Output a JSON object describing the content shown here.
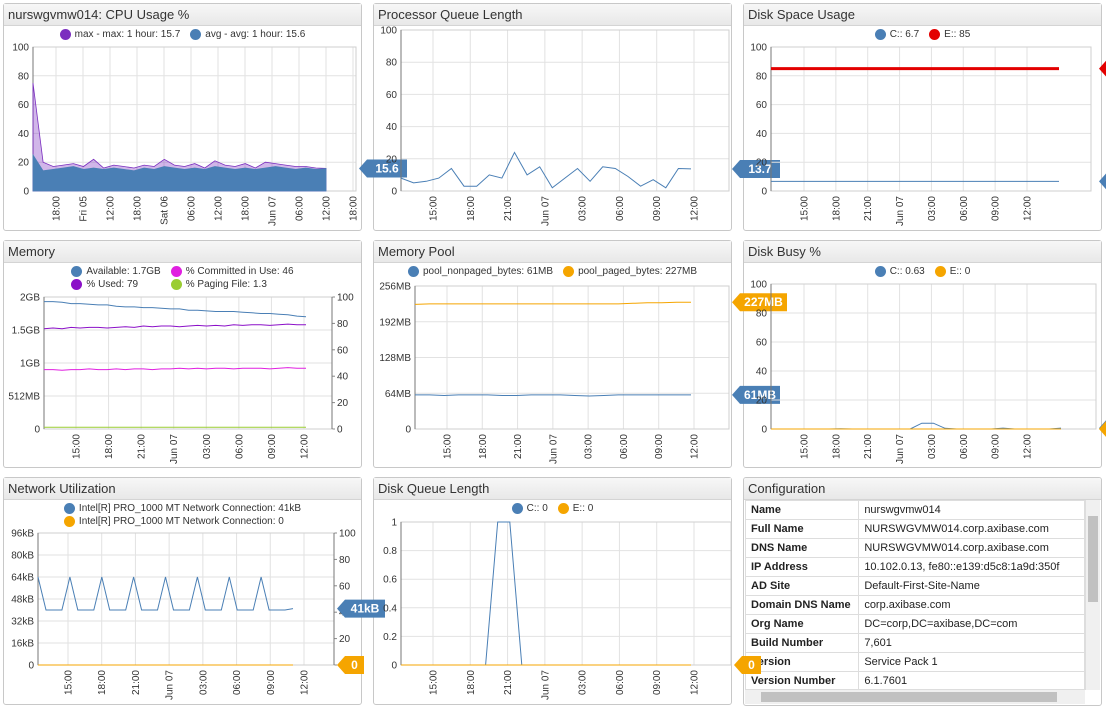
{
  "chart_data": [
    {
      "type": "area",
      "title": "nurswgvmw014: CPU Usage %",
      "ylim": [
        0,
        100
      ],
      "yticks": [
        0,
        20,
        40,
        60,
        80,
        100
      ],
      "xtick_labels": [
        "18:00",
        "Fri 05",
        "12:00",
        "18:00",
        "Sat 06",
        "06:00",
        "12:00",
        "18:00",
        "Jun 07",
        "06:00",
        "12:00",
        "18:00"
      ],
      "series": [
        {
          "name": "max - max: 1 hour: 15.7",
          "color": "#7b2fbf",
          "opacity": 0.35,
          "values": [
            75,
            20,
            17,
            18,
            19,
            17,
            22,
            16,
            18,
            17,
            16,
            18,
            17,
            22,
            18,
            17,
            19,
            16,
            21,
            18,
            17,
            19,
            16,
            20,
            19,
            18,
            17,
            17,
            16,
            15.7
          ]
        },
        {
          "name": "avg - avg: 1 hour: 15.6",
          "color": "#4a7fb5",
          "opacity": 1,
          "values": [
            25,
            14,
            15,
            16,
            17,
            15,
            16,
            15,
            16,
            15,
            14,
            16,
            15,
            17,
            16,
            15,
            16,
            15,
            17,
            16,
            15,
            16,
            15,
            16,
            17,
            16,
            15,
            16,
            15,
            15.6
          ]
        }
      ],
      "badges": [
        {
          "value": 15.6,
          "color": "#4a7fb5"
        }
      ]
    },
    {
      "type": "line",
      "title": "Processor Queue Length",
      "ylim": [
        0,
        100
      ],
      "yticks": [
        0,
        20,
        40,
        60,
        80,
        100
      ],
      "xtick_labels": [
        "15:00",
        "18:00",
        "21:00",
        "Jun 07",
        "03:00",
        "06:00",
        "09:00",
        "12:00"
      ],
      "series": [
        {
          "color": "#4a7fb5",
          "values": [
            8,
            5,
            6,
            8,
            14,
            3,
            3,
            10,
            8,
            24,
            10,
            15,
            2,
            8,
            14,
            6,
            15,
            14,
            9,
            3,
            7,
            2,
            14,
            13.7
          ]
        }
      ],
      "badges": [
        {
          "value": 13.7,
          "color": "#4a7fb5"
        }
      ]
    },
    {
      "type": "line",
      "title": "Disk Space Usage",
      "ylim": [
        0,
        100
      ],
      "yticks": [
        0,
        20,
        40,
        60,
        80,
        100
      ],
      "xtick_labels": [
        "15:00",
        "18:00",
        "21:00",
        "Jun 07",
        "03:00",
        "06:00",
        "09:00",
        "12:00"
      ],
      "series": [
        {
          "name": "C:: 6.7",
          "color": "#4a7fb5",
          "values": [
            6.7,
            6.7
          ]
        },
        {
          "name": "E:: 85",
          "color": "#e30000",
          "width": 3,
          "values": [
            85,
            85
          ]
        }
      ],
      "edge_markers": true
    },
    {
      "type": "line",
      "title": "Memory",
      "ylim": [
        0,
        2
      ],
      "yticks": [
        0,
        {
          "value": 0.5,
          "label": "512MB"
        },
        {
          "value": 1,
          "label": "1GB"
        },
        {
          "value": 1.5,
          "label": "1.5GB"
        },
        {
          "value": 2,
          "label": "2GB"
        }
      ],
      "y2lim": [
        0,
        100
      ],
      "y2ticks": [
        0,
        20,
        40,
        60,
        80,
        100
      ],
      "xtick_labels": [
        "15:00",
        "18:00",
        "21:00",
        "Jun 07",
        "03:00",
        "06:00",
        "09:00",
        "12:00"
      ],
      "series": [
        {
          "name": "Available: 1.7GB",
          "color": "#4a7fb5",
          "values": [
            1.93,
            1.93,
            1.92,
            1.9,
            1.9,
            1.89,
            1.88,
            1.88,
            1.86,
            1.85,
            1.85,
            1.84,
            1.84,
            1.83,
            1.82,
            1.82,
            1.8,
            1.8,
            1.79,
            1.78,
            1.78,
            1.78,
            1.77,
            1.76,
            1.75,
            1.75,
            1.74,
            1.73,
            1.71,
            1.7
          ]
        },
        {
          "name": "% Committed in Use: 46",
          "color": "#e020e0",
          "axis": "y2",
          "values": [
            45,
            45,
            44.5,
            45,
            45,
            45.5,
            45,
            45,
            45.5,
            45,
            45.5,
            45.5,
            45,
            45.5,
            45.5,
            46,
            45.5,
            46,
            45.5,
            46,
            46,
            45.5,
            46,
            46,
            46,
            45.5,
            46,
            46.5,
            46,
            46
          ]
        },
        {
          "name": "% Used: 79",
          "color": "#8b10c8",
          "axis": "y2",
          "values": [
            76,
            76.5,
            76,
            77,
            76.5,
            77,
            77,
            76.5,
            77,
            77.5,
            77,
            78,
            77.5,
            78,
            78,
            77.5,
            78,
            78.5,
            78,
            78.5,
            78,
            79,
            78.5,
            79,
            79,
            78.5,
            79,
            79.5,
            79,
            79
          ]
        },
        {
          "name": "% Paging File: 1.3",
          "color": "#9acd32",
          "axis": "y2",
          "values": [
            1.3,
            1.3
          ]
        }
      ]
    },
    {
      "type": "line",
      "title": "Memory Pool",
      "ylim": [
        0,
        256
      ],
      "yticks": [
        0,
        {
          "value": 64,
          "label": "64MB"
        },
        {
          "value": 128,
          "label": "128MB"
        },
        {
          "value": 192,
          "label": "192MB"
        },
        {
          "value": 256,
          "label": "256MB"
        }
      ],
      "xtick_labels": [
        "15:00",
        "18:00",
        "21:00",
        "Jun 07",
        "03:00",
        "06:00",
        "09:00",
        "12:00"
      ],
      "series": [
        {
          "name": "pool_nonpaged_bytes: 61MB",
          "color": "#4a7fb5",
          "values": [
            61,
            61,
            60,
            61,
            61,
            61,
            60,
            60,
            61,
            61,
            61,
            60,
            59,
            60,
            61,
            61,
            61,
            61,
            61,
            61
          ]
        },
        {
          "name": "pool_paged_bytes: 227MB",
          "color": "#f5a500",
          "values": [
            223,
            224,
            224,
            224,
            224,
            224,
            224,
            224,
            224,
            224,
            224,
            224,
            224,
            224,
            224,
            225,
            226,
            226,
            227,
            227
          ]
        }
      ],
      "badges": [
        {
          "value": 227,
          "label": "227MB",
          "color": "#f5a500"
        },
        {
          "value": 61,
          "label": "61MB",
          "color": "#4a7fb5"
        }
      ]
    },
    {
      "type": "line",
      "title": "Disk Busy %",
      "ylim": [
        0,
        100
      ],
      "yticks": [
        0,
        20,
        40,
        60,
        80,
        100
      ],
      "xtick_labels": [
        "15:00",
        "18:00",
        "21:00",
        "Jun 07",
        "03:00",
        "06:00",
        "09:00",
        "12:00"
      ],
      "series": [
        {
          "name": "C:: 0.63",
          "color": "#4a7fb5",
          "values": [
            0,
            0,
            0,
            0,
            0,
            0,
            0.2,
            0,
            0,
            0,
            0,
            0,
            0,
            4,
            4,
            0.5,
            0,
            0,
            0,
            0,
            0.6,
            0,
            0,
            0,
            0,
            0.63
          ]
        },
        {
          "name": "E:: 0",
          "color": "#f5a500",
          "values": [
            0,
            0
          ]
        }
      ],
      "edge_markers": true
    },
    {
      "type": "line",
      "title": "Network Utilization",
      "ylim": [
        0,
        96
      ],
      "yticks": [
        0,
        {
          "value": 16,
          "label": "16kB"
        },
        {
          "value": 32,
          "label": "32kB"
        },
        {
          "value": 48,
          "label": "48kB"
        },
        {
          "value": 64,
          "label": "64kB"
        },
        {
          "value": 80,
          "label": "80kB"
        },
        {
          "value": 96,
          "label": "96kB"
        }
      ],
      "y2lim": [
        0,
        100
      ],
      "y2ticks": [
        0,
        20,
        40,
        60,
        80,
        100
      ],
      "xtick_labels": [
        "15:00",
        "18:00",
        "21:00",
        "Jun 07",
        "03:00",
        "06:00",
        "09:00",
        "12:00"
      ],
      "series": [
        {
          "name": "Intel[R] PRO_1000 MT Network Connection: 41kB",
          "color": "#4a7fb5",
          "values": [
            64,
            40,
            40,
            40,
            64,
            40,
            40,
            40,
            64,
            40,
            40,
            40,
            64,
            40,
            40,
            40,
            64,
            40,
            40,
            40,
            64,
            40,
            40,
            40,
            64,
            40,
            40,
            40,
            64,
            40,
            40,
            40,
            41
          ]
        },
        {
          "name": "Intel[R] PRO_1000 MT Network Connection: 0",
          "color": "#f5a500",
          "axis": "y2",
          "values": [
            0,
            0
          ]
        }
      ],
      "badges": [
        {
          "value": 41,
          "label": "41kB",
          "color": "#4a7fb5"
        },
        {
          "value": 0,
          "color": "#f5a500",
          "axis": "y2"
        }
      ]
    },
    {
      "type": "line",
      "title": "Disk Queue Length",
      "ylim": [
        0,
        1
      ],
      "yticks": [
        0,
        0.2,
        0.4,
        0.6,
        0.8,
        1
      ],
      "xtick_labels": [
        "15:00",
        "18:00",
        "21:00",
        "Jun 07",
        "03:00",
        "06:00",
        "09:00",
        "12:00"
      ],
      "series": [
        {
          "name": "C:: 0",
          "color": "#4a7fb5",
          "values": [
            0,
            0,
            0,
            0,
            0,
            0,
            0,
            0,
            1,
            1,
            0,
            0,
            0,
            0,
            0,
            0,
            0,
            0,
            0,
            0,
            0,
            0,
            0,
            0,
            0
          ]
        },
        {
          "name": "E:: 0",
          "color": "#f5a500",
          "values": [
            0,
            0
          ]
        }
      ],
      "badges": [
        {
          "value": 0,
          "color": "#f5a500"
        }
      ]
    }
  ],
  "configuration": {
    "title": "Configuration",
    "rows": [
      [
        "Name",
        "nurswgvmw014"
      ],
      [
        "Full Name",
        "NURSWGVMW014.corp.axibase.com"
      ],
      [
        "DNS Name",
        "NURSWGVMW014.corp.axibase.com"
      ],
      [
        "IP Address",
        "10.102.0.13, fe80::e139:d5c8:1a9d:350f"
      ],
      [
        "AD Site",
        "Default-First-Site-Name"
      ],
      [
        "Domain DNS Name",
        "corp.axibase.com"
      ],
      [
        "Org Name",
        "DC=corp,DC=axibase,DC=com"
      ],
      [
        "Build Number",
        "7,601"
      ],
      [
        "Version",
        "Service Pack 1"
      ],
      [
        "Version Number",
        "6.1.7601"
      ]
    ]
  }
}
